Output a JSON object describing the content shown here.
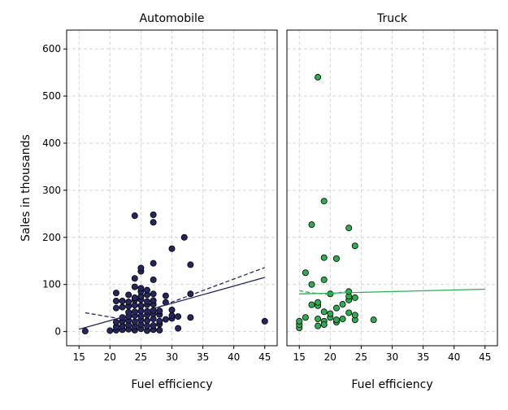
{
  "chart_data": {
    "type": "scatter",
    "ylabel": "Sales in thousands",
    "ylim": [
      -30,
      640
    ],
    "yticks": [
      0,
      100,
      200,
      300,
      400,
      500,
      600
    ],
    "xlim": [
      13,
      47
    ],
    "xticks": [
      15,
      20,
      25,
      30,
      35,
      40,
      45
    ],
    "grid": true,
    "panels": [
      {
        "title": "Automobile",
        "xlabel": "Fuel efficiency",
        "colors": {
          "point": "#26265f",
          "line": "#26265f"
        },
        "points": [
          [
            16,
            1
          ],
          [
            20,
            2
          ],
          [
            21,
            3
          ],
          [
            22,
            4
          ],
          [
            23,
            5
          ],
          [
            24,
            3
          ],
          [
            25,
            6
          ],
          [
            26,
            2
          ],
          [
            27,
            4
          ],
          [
            28,
            3
          ],
          [
            31,
            7
          ],
          [
            21,
            10
          ],
          [
            22,
            12
          ],
          [
            23,
            14
          ],
          [
            24,
            11
          ],
          [
            25,
            15
          ],
          [
            26,
            12
          ],
          [
            27,
            13
          ],
          [
            28,
            16
          ],
          [
            21,
            20
          ],
          [
            22,
            22
          ],
          [
            23,
            24
          ],
          [
            24,
            21
          ],
          [
            25,
            25
          ],
          [
            26,
            23
          ],
          [
            27,
            27
          ],
          [
            28,
            22
          ],
          [
            29,
            26
          ],
          [
            30,
            28
          ],
          [
            22,
            30
          ],
          [
            23,
            32
          ],
          [
            24,
            34
          ],
          [
            25,
            33
          ],
          [
            26,
            35
          ],
          [
            27,
            38
          ],
          [
            28,
            36
          ],
          [
            30,
            34
          ],
          [
            31,
            32
          ],
          [
            33,
            30
          ],
          [
            23,
            41
          ],
          [
            24,
            42
          ],
          [
            25,
            44
          ],
          [
            26,
            43
          ],
          [
            27,
            45
          ],
          [
            28,
            44
          ],
          [
            30,
            46
          ],
          [
            21,
            50
          ],
          [
            22,
            52
          ],
          [
            23,
            54
          ],
          [
            24,
            56
          ],
          [
            25,
            55
          ],
          [
            26,
            57
          ],
          [
            27,
            58
          ],
          [
            21,
            65
          ],
          [
            23,
            63
          ],
          [
            24,
            67
          ],
          [
            25,
            68
          ],
          [
            26,
            64
          ],
          [
            27,
            66
          ],
          [
            29,
            62
          ],
          [
            24,
            72
          ],
          [
            25,
            75
          ],
          [
            26,
            78
          ],
          [
            27,
            80
          ],
          [
            29,
            76
          ],
          [
            33,
            80
          ],
          [
            22,
            65
          ],
          [
            23,
            78
          ],
          [
            25,
            85
          ],
          [
            25,
            92
          ],
          [
            26,
            88
          ],
          [
            24,
            95
          ],
          [
            21,
            82
          ],
          [
            24,
            113
          ],
          [
            25,
            128
          ],
          [
            25,
            135
          ],
          [
            27,
            110
          ],
          [
            27,
            145
          ],
          [
            30,
            176
          ],
          [
            32,
            200
          ],
          [
            33,
            142
          ],
          [
            24,
            246
          ],
          [
            27,
            232
          ],
          [
            27,
            248
          ],
          [
            45,
            22
          ]
        ],
        "fit_solid": [
          [
            15,
            5
          ],
          [
            45,
            115
          ]
        ],
        "fit_dashed": [
          [
            16,
            40
          ],
          [
            24,
            22
          ],
          [
            27,
            48
          ],
          [
            45,
            136
          ]
        ]
      },
      {
        "title": "Truck",
        "xlabel": "Fuel efficiency",
        "colors": {
          "point": "#2eac50",
          "line": "#2eac50"
        },
        "points": [
          [
            15,
            8
          ],
          [
            15,
            15
          ],
          [
            15,
            22
          ],
          [
            16,
            30
          ],
          [
            16,
            125
          ],
          [
            17,
            100
          ],
          [
            17,
            57
          ],
          [
            17,
            227
          ],
          [
            18,
            12
          ],
          [
            18,
            27
          ],
          [
            18,
            55
          ],
          [
            18,
            62
          ],
          [
            18,
            540
          ],
          [
            19,
            22
          ],
          [
            19,
            15
          ],
          [
            19,
            42
          ],
          [
            19,
            110
          ],
          [
            19,
            157
          ],
          [
            19,
            277
          ],
          [
            20,
            30
          ],
          [
            20,
            38
          ],
          [
            20,
            80
          ],
          [
            21,
            20
          ],
          [
            21,
            25
          ],
          [
            21,
            50
          ],
          [
            21,
            155
          ],
          [
            22,
            27
          ],
          [
            22,
            58
          ],
          [
            23,
            40
          ],
          [
            23,
            67
          ],
          [
            23,
            75
          ],
          [
            23,
            85
          ],
          [
            23,
            220
          ],
          [
            24,
            25
          ],
          [
            24,
            35
          ],
          [
            24,
            72
          ],
          [
            24,
            182
          ],
          [
            27,
            25
          ]
        ],
        "fit_solid": [
          [
            15,
            80
          ],
          [
            45,
            90
          ]
        ],
        "fit_dashed": [
          [
            15,
            87
          ],
          [
            17,
            82
          ],
          [
            20,
            79
          ],
          [
            22,
            84
          ],
          [
            23,
            87
          ]
        ]
      }
    ]
  }
}
